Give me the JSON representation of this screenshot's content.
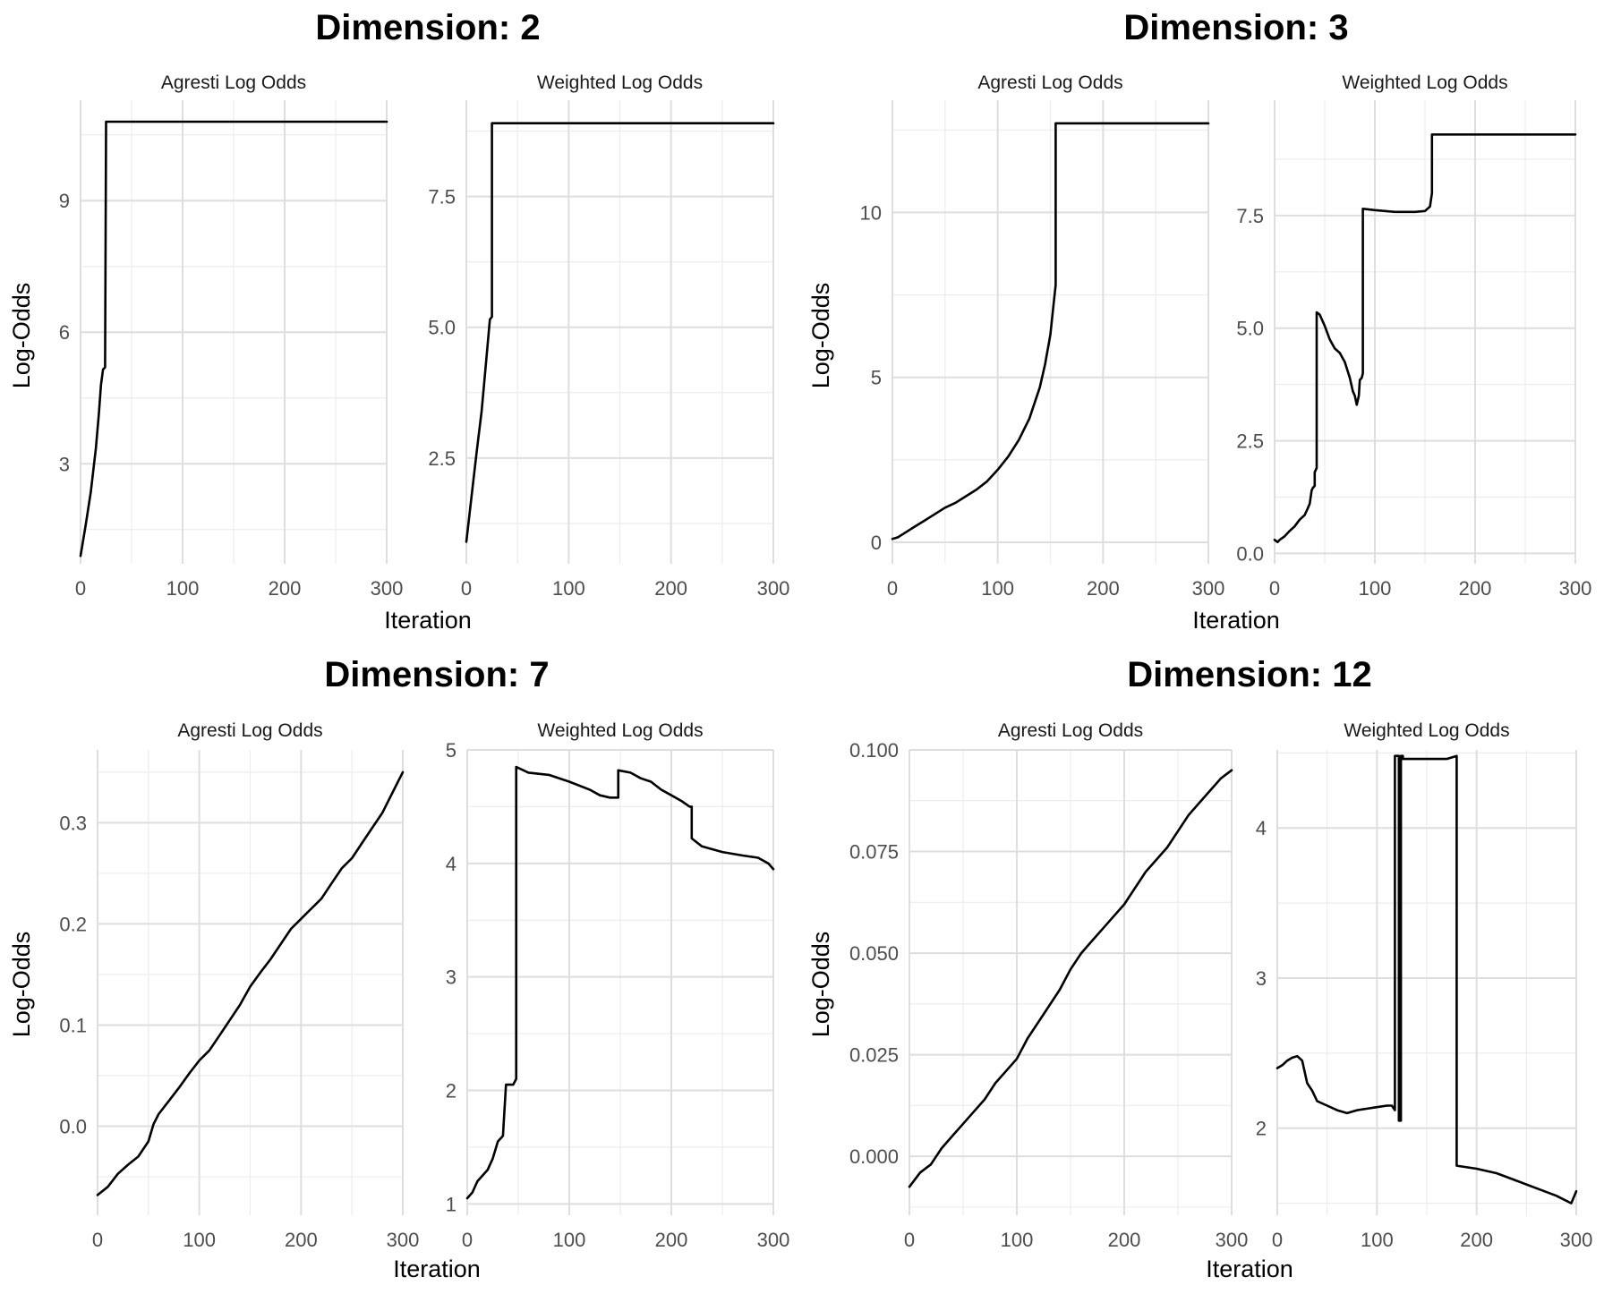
{
  "chart_data": [
    {
      "group_title": "Dimension: 2",
      "xlabel": "Iteration",
      "ylabel": "Log-Odds",
      "panels": [
        {
          "title": "Agresti Log Odds",
          "type": "line",
          "xlim": [
            0,
            300
          ],
          "ylim": [
            0.72,
            11.29
          ],
          "xticks": [
            0,
            100,
            200,
            300
          ],
          "yticks": [
            3,
            6,
            9
          ],
          "ytick_labels": [
            "3",
            "6",
            "9"
          ],
          "x": [
            0,
            5,
            10,
            15,
            18,
            20,
            22,
            24,
            25,
            25,
            300
          ],
          "y": [
            0.9,
            1.6,
            2.35,
            3.35,
            4.15,
            4.8,
            5.15,
            5.2,
            10.8,
            10.8,
            10.8
          ]
        },
        {
          "title": "Weighted Log Odds",
          "type": "line",
          "xlim": [
            0,
            300
          ],
          "ylim": [
            0.48,
            9.34
          ],
          "xticks": [
            0,
            100,
            200,
            300
          ],
          "yticks": [
            2.5,
            5.0,
            7.5
          ],
          "ytick_labels": [
            "2.5",
            "5.0",
            "7.5"
          ],
          "x": [
            0,
            5,
            10,
            15,
            20,
            23,
            25,
            25,
            300
          ],
          "y": [
            0.9,
            1.75,
            2.6,
            3.4,
            4.5,
            5.15,
            5.2,
            8.9,
            8.9
          ]
        }
      ]
    },
    {
      "group_title": "Dimension: 3",
      "xlabel": "Iteration",
      "ylabel": "Log-Odds",
      "panels": [
        {
          "title": "Agresti Log Odds",
          "type": "line",
          "xlim": [
            0,
            300
          ],
          "ylim": [
            -0.65,
            13.4
          ],
          "xticks": [
            0,
            100,
            200,
            300
          ],
          "yticks": [
            0,
            5,
            10
          ],
          "ytick_labels": [
            "0",
            "5",
            "10"
          ],
          "x": [
            0,
            5,
            10,
            20,
            30,
            40,
            50,
            60,
            70,
            80,
            90,
            100,
            110,
            120,
            130,
            140,
            145,
            150,
            153,
            155,
            155,
            300
          ],
          "y": [
            0.1,
            0.15,
            0.25,
            0.45,
            0.65,
            0.85,
            1.05,
            1.2,
            1.4,
            1.6,
            1.85,
            2.2,
            2.6,
            3.1,
            3.75,
            4.7,
            5.4,
            6.3,
            7.2,
            7.8,
            12.7,
            12.7
          ]
        },
        {
          "title": "Weighted Log Odds",
          "type": "line",
          "xlim": [
            0,
            300
          ],
          "ylim": [
            -0.23,
            10.06
          ],
          "xticks": [
            0,
            100,
            200,
            300
          ],
          "yticks": [
            0.0,
            2.5,
            5.0,
            7.5
          ],
          "ytick_labels": [
            "0.0",
            "2.5",
            "5.0",
            "7.5"
          ],
          "x": [
            0,
            3,
            5,
            10,
            15,
            20,
            25,
            30,
            33,
            35,
            37,
            38,
            40,
            40,
            42,
            42,
            45,
            48,
            50,
            55,
            60,
            65,
            70,
            75,
            78,
            80,
            82,
            84,
            85,
            87,
            88,
            88,
            100,
            120,
            140,
            150,
            155,
            157,
            157,
            300
          ],
          "y": [
            0.3,
            0.25,
            0.3,
            0.38,
            0.5,
            0.6,
            0.75,
            0.85,
            1.0,
            1.1,
            1.4,
            1.45,
            1.5,
            1.8,
            1.9,
            5.35,
            5.3,
            5.15,
            5.05,
            4.75,
            4.55,
            4.45,
            4.25,
            3.9,
            3.6,
            3.5,
            3.3,
            3.5,
            3.85,
            3.9,
            4.0,
            7.65,
            7.62,
            7.58,
            7.58,
            7.6,
            7.7,
            8.0,
            9.3,
            9.3
          ]
        }
      ]
    },
    {
      "group_title": "Dimension: 7",
      "xlabel": "Iteration",
      "ylabel": "Log-Odds",
      "panels": [
        {
          "title": "Agresti Log Odds",
          "type": "line",
          "xlim": [
            0,
            300
          ],
          "ylim": [
            -0.088,
            0.372
          ],
          "xticks": [
            0,
            100,
            200,
            300
          ],
          "yticks": [
            0.0,
            0.1,
            0.2,
            0.3
          ],
          "ytick_labels": [
            "0.0",
            "0.1",
            "0.2",
            "0.3"
          ],
          "x": [
            0,
            10,
            20,
            30,
            40,
            50,
            55,
            60,
            70,
            80,
            90,
            100,
            110,
            120,
            130,
            140,
            150,
            160,
            170,
            180,
            190,
            200,
            210,
            220,
            230,
            240,
            250,
            260,
            270,
            280,
            290,
            300
          ],
          "y": [
            -0.068,
            -0.06,
            -0.047,
            -0.038,
            -0.03,
            -0.015,
            0.002,
            0.012,
            0.025,
            0.038,
            0.052,
            0.065,
            0.075,
            0.09,
            0.105,
            0.12,
            0.138,
            0.152,
            0.165,
            0.18,
            0.195,
            0.205,
            0.215,
            0.225,
            0.24,
            0.255,
            0.265,
            0.28,
            0.295,
            0.31,
            0.33,
            0.35
          ]
        },
        {
          "title": "Weighted Log Odds",
          "type": "line",
          "xlim": [
            0,
            300
          ],
          "ylim": [
            0.9,
            5.0
          ],
          "xticks": [
            0,
            100,
            200,
            300
          ],
          "yticks": [
            1,
            2,
            3,
            4,
            5
          ],
          "ytick_labels": [
            "1",
            "2",
            "3",
            "4",
            "5"
          ],
          "x": [
            0,
            5,
            10,
            15,
            20,
            25,
            30,
            35,
            38,
            45,
            48,
            48,
            60,
            80,
            100,
            120,
            130,
            140,
            148,
            148,
            160,
            170,
            180,
            190,
            200,
            210,
            218,
            220,
            220,
            230,
            250,
            270,
            285,
            295,
            300
          ],
          "y": [
            1.05,
            1.1,
            1.2,
            1.25,
            1.3,
            1.4,
            1.55,
            1.6,
            2.05,
            2.05,
            2.1,
            4.85,
            4.8,
            4.78,
            4.72,
            4.65,
            4.6,
            4.58,
            4.58,
            4.82,
            4.8,
            4.75,
            4.72,
            4.65,
            4.6,
            4.55,
            4.5,
            4.5,
            4.22,
            4.15,
            4.1,
            4.07,
            4.05,
            4.0,
            3.95
          ]
        }
      ]
    },
    {
      "group_title": "Dimension: 12",
      "xlabel": "Iteration",
      "ylabel": "Log-Odds",
      "panels": [
        {
          "title": "Agresti Log Odds",
          "type": "line",
          "xlim": [
            0,
            300
          ],
          "ylim": [
            -0.0145,
            0.1
          ],
          "xticks": [
            0,
            100,
            200,
            300
          ],
          "yticks": [
            0.0,
            0.025,
            0.05,
            0.075,
            0.1
          ],
          "ytick_labels": [
            "0.000",
            "0.025",
            "0.050",
            "0.075",
            "0.100"
          ],
          "x": [
            0,
            10,
            20,
            30,
            40,
            50,
            60,
            70,
            80,
            90,
            100,
            110,
            120,
            130,
            140,
            150,
            160,
            170,
            180,
            190,
            200,
            210,
            220,
            230,
            240,
            250,
            260,
            270,
            280,
            290,
            300
          ],
          "y": [
            -0.0075,
            -0.004,
            -0.002,
            0.002,
            0.005,
            0.008,
            0.011,
            0.014,
            0.018,
            0.021,
            0.024,
            0.029,
            0.033,
            0.037,
            0.041,
            0.046,
            0.05,
            0.053,
            0.056,
            0.059,
            0.062,
            0.066,
            0.07,
            0.073,
            0.076,
            0.08,
            0.084,
            0.087,
            0.09,
            0.093,
            0.095
          ]
        },
        {
          "title": "Weighted Log Odds",
          "type": "line",
          "xlim": [
            0,
            300
          ],
          "ylim": [
            1.42,
            4.52
          ],
          "xticks": [
            0,
            100,
            200,
            300
          ],
          "yticks": [
            2,
            3,
            4
          ],
          "ytick_labels": [
            "2",
            "3",
            "4"
          ],
          "x": [
            0,
            5,
            10,
            15,
            20,
            25,
            30,
            35,
            40,
            50,
            60,
            70,
            80,
            90,
            100,
            110,
            115,
            118,
            118,
            122,
            122,
            124,
            124,
            126,
            126,
            150,
            170,
            180,
            180,
            200,
            220,
            240,
            260,
            280,
            295,
            300
          ],
          "y": [
            2.4,
            2.42,
            2.45,
            2.47,
            2.48,
            2.45,
            2.3,
            2.25,
            2.18,
            2.15,
            2.12,
            2.1,
            2.12,
            2.13,
            2.14,
            2.15,
            2.15,
            2.12,
            4.48,
            4.48,
            2.05,
            2.05,
            4.48,
            4.48,
            4.46,
            4.46,
            4.46,
            4.48,
            1.75,
            1.73,
            1.7,
            1.65,
            1.6,
            1.55,
            1.5,
            1.58
          ]
        }
      ]
    }
  ]
}
